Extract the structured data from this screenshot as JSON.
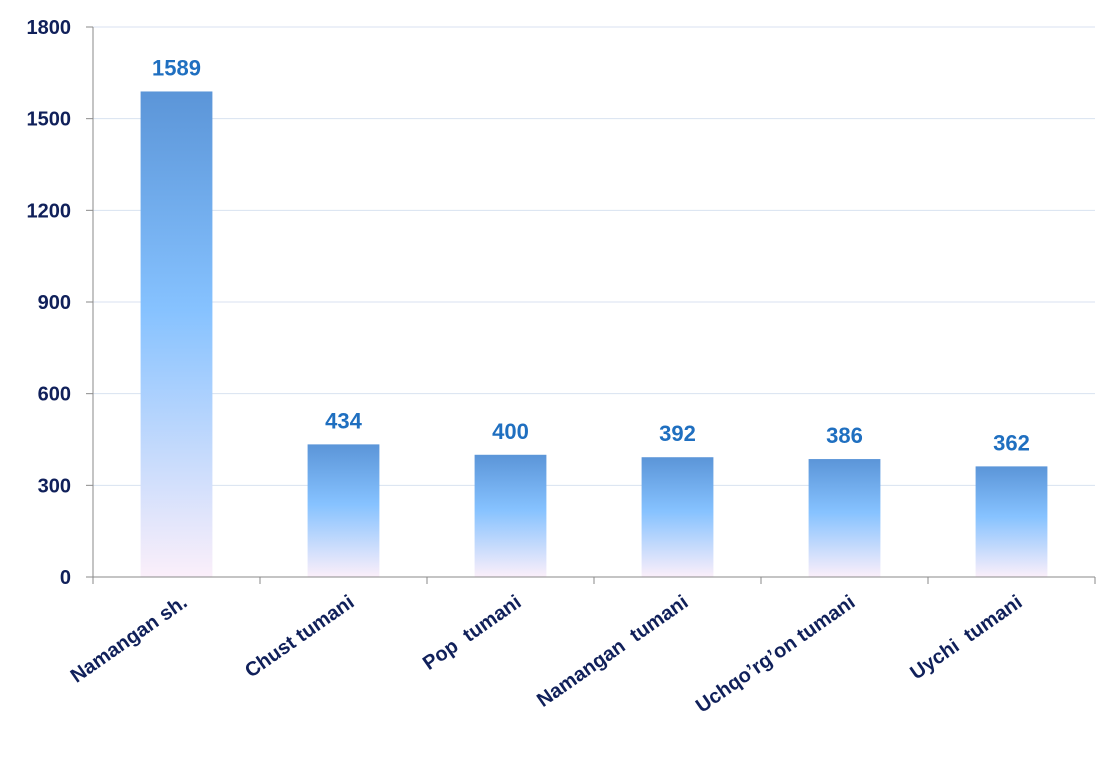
{
  "chart_data": {
    "type": "bar",
    "title": "",
    "xlabel": "",
    "ylabel": "",
    "categories": [
      "Namangan sh.",
      "Chust tumani",
      "Pop  tumani",
      "Namangan  tumani",
      "Uchqo’rg’on tumani",
      "Uychi  tumani"
    ],
    "values": [
      1589,
      434,
      400,
      392,
      386,
      362
    ],
    "ylim": [
      0,
      1800
    ],
    "yticks": [
      0,
      300,
      600,
      900,
      1200,
      1500,
      1800
    ],
    "grid": true,
    "legend": "none",
    "colors": {
      "bar_top": "#5b95d8",
      "bar_mid": "#86c2ff",
      "bar_bottom": "#fbeffa",
      "data_label": "#1f6fc0",
      "axis_text": "#10205a",
      "gridline": "#d8e2f0"
    }
  }
}
